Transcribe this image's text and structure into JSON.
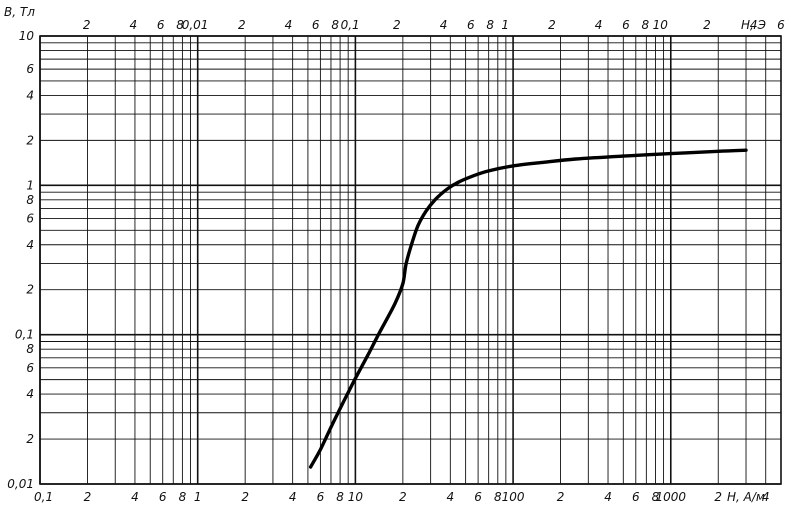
{
  "chart_data": {
    "type": "line",
    "title": "",
    "ylabel": "B, Тл",
    "xlabel_bottom": "H, А/м",
    "xlabel_top": "H, Э",
    "x_scale": "log",
    "y_scale": "log",
    "xlim": [
      0.1,
      5000
    ],
    "ylim": [
      0.01,
      10
    ],
    "x_top_lim": [
      0.001,
      60
    ],
    "grid": true,
    "legend": "none",
    "colors": {
      "grid": "#111111",
      "curve": "#000000",
      "text": "#111111"
    },
    "ticks": {
      "y": [
        {
          "value": 10,
          "label": "10"
        },
        {
          "value": 6,
          "label": "6"
        },
        {
          "value": 4,
          "label": "4"
        },
        {
          "value": 2,
          "label": "2"
        },
        {
          "value": 1,
          "label": "1"
        },
        {
          "value": 0.8,
          "label": "8"
        },
        {
          "value": 0.6,
          "label": "6"
        },
        {
          "value": 0.4,
          "label": "4"
        },
        {
          "value": 0.2,
          "label": "2"
        },
        {
          "value": 0.1,
          "label": "0,1"
        },
        {
          "value": 0.08,
          "label": "8"
        },
        {
          "value": 0.06,
          "label": "6"
        },
        {
          "value": 0.04,
          "label": "4"
        },
        {
          "value": 0.02,
          "label": "2"
        },
        {
          "value": 0.01,
          "label": "0,01"
        }
      ],
      "x_bottom": [
        {
          "value": 0.1,
          "label": "0,1"
        },
        {
          "value": 0.2,
          "label": "2"
        },
        {
          "value": 0.4,
          "label": "4"
        },
        {
          "value": 0.6,
          "label": "6"
        },
        {
          "value": 0.8,
          "label": "8"
        },
        {
          "value": 1,
          "label": "1"
        },
        {
          "value": 2,
          "label": "2"
        },
        {
          "value": 4,
          "label": "4"
        },
        {
          "value": 6,
          "label": "6"
        },
        {
          "value": 8,
          "label": "8"
        },
        {
          "value": 10,
          "label": "10"
        },
        {
          "value": 20,
          "label": "2"
        },
        {
          "value": 40,
          "label": "4"
        },
        {
          "value": 60,
          "label": "6"
        },
        {
          "value": 80,
          "label": "8"
        },
        {
          "value": 100,
          "label": "100"
        },
        {
          "value": 200,
          "label": "2"
        },
        {
          "value": 400,
          "label": "4"
        },
        {
          "value": 600,
          "label": "6"
        },
        {
          "value": 800,
          "label": "8"
        },
        {
          "value": 1000,
          "label": "1000"
        },
        {
          "value": 2000,
          "label": "2"
        },
        {
          "value": 4000,
          "label": "4"
        }
      ],
      "x_top": [
        {
          "value": 0.002,
          "label": "2"
        },
        {
          "value": 0.004,
          "label": "4"
        },
        {
          "value": 0.006,
          "label": "6"
        },
        {
          "value": 0.008,
          "label": "8"
        },
        {
          "value": 0.01,
          "label": "0,01"
        },
        {
          "value": 0.02,
          "label": "2"
        },
        {
          "value": 0.04,
          "label": "4"
        },
        {
          "value": 0.06,
          "label": "6"
        },
        {
          "value": 0.08,
          "label": "8"
        },
        {
          "value": 0.1,
          "label": "0,1"
        },
        {
          "value": 0.2,
          "label": "2"
        },
        {
          "value": 0.4,
          "label": "4"
        },
        {
          "value": 0.6,
          "label": "6"
        },
        {
          "value": 0.8,
          "label": "8"
        },
        {
          "value": 1,
          "label": "1"
        },
        {
          "value": 2,
          "label": "2"
        },
        {
          "value": 4,
          "label": "4"
        },
        {
          "value": 6,
          "label": "6"
        },
        {
          "value": 8,
          "label": "8"
        },
        {
          "value": 10,
          "label": "10"
        },
        {
          "value": 20,
          "label": "2"
        },
        {
          "value": 40,
          "label": "4"
        },
        {
          "value": 60,
          "label": "6"
        }
      ]
    },
    "series": [
      {
        "points": [
          {
            "x": 5.2,
            "y": 0.013
          },
          {
            "x": 6.0,
            "y": 0.017
          },
          {
            "x": 7.0,
            "y": 0.024
          },
          {
            "x": 8.0,
            "y": 0.032
          },
          {
            "x": 9.0,
            "y": 0.041
          },
          {
            "x": 10.0,
            "y": 0.051
          },
          {
            "x": 12.0,
            "y": 0.073
          },
          {
            "x": 14.0,
            "y": 0.1
          },
          {
            "x": 16.0,
            "y": 0.13
          },
          {
            "x": 18.0,
            "y": 0.165
          },
          {
            "x": 20.0,
            "y": 0.22
          },
          {
            "x": 21.0,
            "y": 0.3
          },
          {
            "x": 23.0,
            "y": 0.42
          },
          {
            "x": 25.0,
            "y": 0.54
          },
          {
            "x": 28.0,
            "y": 0.67
          },
          {
            "x": 32.0,
            "y": 0.8
          },
          {
            "x": 38.0,
            "y": 0.94
          },
          {
            "x": 45.0,
            "y": 1.05
          },
          {
            "x": 55.0,
            "y": 1.15
          },
          {
            "x": 70.0,
            "y": 1.25
          },
          {
            "x": 100.0,
            "y": 1.35
          },
          {
            "x": 150.0,
            "y": 1.42
          },
          {
            "x": 250.0,
            "y": 1.5
          },
          {
            "x": 500.0,
            "y": 1.57
          },
          {
            "x": 1000.0,
            "y": 1.63
          },
          {
            "x": 2000.0,
            "y": 1.69
          },
          {
            "x": 3000.0,
            "y": 1.72
          }
        ]
      }
    ]
  }
}
